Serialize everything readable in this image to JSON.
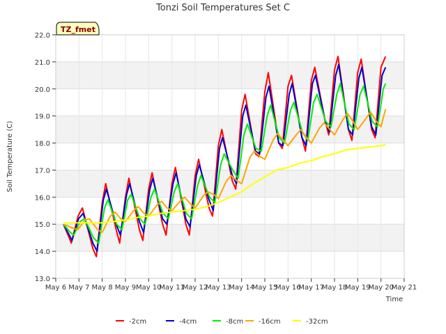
{
  "chart_data": {
    "type": "line",
    "title": "Tonzi Soil Temperatures Set C",
    "site_label": "TZ_fmet",
    "xlabel": "Time",
    "ylabel": "Soil Temperature (C)",
    "ylim": [
      13.0,
      22.0
    ],
    "yticks": [
      "13.0",
      "14.0",
      "15.0",
      "16.0",
      "17.0",
      "18.0",
      "19.0",
      "20.0",
      "21.0",
      "22.0"
    ],
    "xlim": [
      6,
      21
    ],
    "xticks": [
      "May 6",
      "May 7",
      "May 8",
      "May 9",
      "May 10",
      "May 11",
      "May 12",
      "May 13",
      "May 14",
      "May 15",
      "May 16",
      "May 17",
      "May 18",
      "May 19",
      "May 20",
      "May 21"
    ],
    "band_fill": "#f2f2f2",
    "series": [
      {
        "name": "-2cm",
        "color": "#ff0000",
        "x": [
          6.33,
          6.58,
          6.67,
          6.96,
          7.15,
          7.6,
          7.75,
          8.0,
          8.15,
          8.6,
          8.75,
          9.0,
          9.15,
          9.6,
          9.75,
          10.0,
          10.15,
          10.6,
          10.75,
          11.0,
          11.15,
          11.6,
          11.75,
          12.0,
          12.15,
          12.6,
          12.75,
          13.0,
          13.15,
          13.6,
          13.75,
          14.0,
          14.15,
          14.6,
          14.75,
          15.0,
          15.15,
          15.6,
          15.75,
          16.0,
          16.15,
          16.6,
          16.75,
          17.0,
          17.15,
          17.6,
          17.75,
          18.0,
          18.15,
          18.6,
          18.75,
          19.0,
          19.15,
          19.6,
          19.75,
          20.0,
          20.2
        ],
        "y": [
          15.0,
          14.5,
          14.3,
          15.3,
          15.6,
          14.1,
          13.8,
          15.8,
          16.5,
          14.8,
          14.3,
          16.0,
          16.7,
          14.8,
          14.4,
          16.3,
          16.9,
          15.0,
          14.6,
          16.5,
          17.1,
          15.0,
          14.6,
          16.8,
          17.4,
          15.6,
          15.3,
          17.9,
          18.5,
          16.6,
          16.3,
          19.2,
          19.8,
          17.6,
          17.5,
          19.9,
          20.6,
          18.0,
          17.8,
          20.1,
          20.5,
          18.2,
          17.7,
          20.3,
          20.8,
          18.8,
          18.3,
          20.7,
          21.2,
          18.5,
          18.1,
          20.6,
          21.1,
          18.5,
          18.2,
          20.8,
          21.2
        ]
      },
      {
        "name": "-4cm",
        "color": "#0000cc",
        "x": [
          6.33,
          6.58,
          6.7,
          6.98,
          7.18,
          7.6,
          7.78,
          8.05,
          8.18,
          8.6,
          8.78,
          9.05,
          9.18,
          9.6,
          9.78,
          10.05,
          10.18,
          10.6,
          10.78,
          11.05,
          11.18,
          11.6,
          11.78,
          12.05,
          12.18,
          12.6,
          12.78,
          13.05,
          13.18,
          13.6,
          13.78,
          14.05,
          14.18,
          14.6,
          14.78,
          15.05,
          15.18,
          15.6,
          15.78,
          16.05,
          16.18,
          16.6,
          16.78,
          17.05,
          17.18,
          17.6,
          17.78,
          18.05,
          18.18,
          18.6,
          18.78,
          19.05,
          19.18,
          19.6,
          19.78,
          20.05,
          20.2
        ],
        "y": [
          15.0,
          14.6,
          14.4,
          15.2,
          15.4,
          14.3,
          14.0,
          15.9,
          16.3,
          15.0,
          14.6,
          16.1,
          16.5,
          15.1,
          14.7,
          16.3,
          16.7,
          15.2,
          15.0,
          16.5,
          16.9,
          15.2,
          14.9,
          16.8,
          17.2,
          15.9,
          15.5,
          17.8,
          18.2,
          16.8,
          16.5,
          19.0,
          19.4,
          17.7,
          17.6,
          19.7,
          20.1,
          18.0,
          17.9,
          19.8,
          20.2,
          18.2,
          17.9,
          20.2,
          20.5,
          18.8,
          18.4,
          20.5,
          20.9,
          18.5,
          18.3,
          20.4,
          20.8,
          18.6,
          18.3,
          20.5,
          20.8
        ]
      },
      {
        "name": "-8cm",
        "color": "#00ee00",
        "x": [
          6.33,
          6.62,
          6.78,
          7.05,
          7.25,
          7.62,
          7.85,
          8.1,
          8.25,
          8.62,
          8.85,
          9.1,
          9.25,
          9.62,
          9.85,
          10.1,
          10.25,
          10.62,
          10.85,
          11.1,
          11.25,
          11.62,
          11.85,
          12.1,
          12.25,
          12.62,
          12.85,
          13.1,
          13.25,
          13.62,
          13.85,
          14.1,
          14.25,
          14.62,
          14.85,
          15.1,
          15.25,
          15.62,
          15.85,
          16.1,
          16.25,
          16.62,
          16.85,
          17.1,
          17.25,
          17.62,
          17.85,
          18.1,
          18.25,
          18.62,
          18.85,
          19.1,
          19.25,
          19.62,
          19.85,
          20.1,
          20.2
        ],
        "y": [
          15.0,
          14.7,
          14.6,
          15.1,
          15.2,
          14.5,
          14.3,
          15.6,
          15.9,
          15.0,
          14.8,
          15.9,
          16.1,
          15.2,
          15.0,
          16.0,
          16.3,
          15.4,
          15.2,
          16.2,
          16.5,
          15.4,
          15.2,
          16.4,
          16.8,
          16.0,
          15.8,
          17.2,
          17.6,
          17.0,
          16.7,
          18.3,
          18.7,
          17.8,
          17.7,
          19.0,
          19.4,
          18.2,
          18.0,
          19.2,
          19.5,
          18.4,
          18.1,
          19.5,
          19.8,
          18.8,
          18.6,
          19.8,
          20.2,
          18.7,
          18.5,
          19.8,
          20.1,
          18.8,
          18.6,
          20.0,
          20.2
        ]
      },
      {
        "name": "-16cm",
        "color": "#ffa500",
        "x": [
          6.33,
          6.75,
          6.95,
          7.25,
          7.45,
          7.8,
          8.0,
          8.35,
          8.55,
          8.8,
          9.0,
          9.35,
          9.55,
          9.8,
          10.0,
          10.35,
          10.55,
          10.8,
          11.0,
          11.35,
          11.55,
          11.8,
          12.0,
          12.35,
          12.55,
          12.8,
          13.0,
          13.35,
          13.55,
          13.8,
          14.0,
          14.35,
          14.55,
          14.8,
          15.0,
          15.35,
          15.55,
          15.8,
          16.0,
          16.35,
          16.55,
          16.8,
          17.0,
          17.35,
          17.55,
          17.8,
          18.0,
          18.35,
          18.55,
          18.8,
          19.0,
          19.35,
          19.55,
          19.8,
          20.0,
          20.2
        ],
        "y": [
          15.0,
          14.85,
          14.8,
          15.15,
          15.2,
          14.8,
          14.7,
          15.3,
          15.45,
          15.2,
          15.1,
          15.5,
          15.65,
          15.4,
          15.3,
          15.7,
          15.85,
          15.6,
          15.5,
          15.85,
          16.0,
          15.75,
          15.6,
          16.05,
          16.2,
          16.1,
          15.95,
          16.6,
          16.8,
          16.6,
          16.5,
          17.45,
          17.7,
          17.5,
          17.4,
          18.1,
          18.35,
          18.1,
          17.9,
          18.3,
          18.5,
          18.2,
          18.0,
          18.55,
          18.75,
          18.5,
          18.3,
          18.85,
          19.1,
          18.8,
          18.5,
          18.9,
          19.15,
          18.8,
          18.6,
          19.25
        ]
      },
      {
        "name": "-32cm",
        "color": "#ffff00",
        "x": [
          6.33,
          6.7,
          7.0,
          7.5,
          8.0,
          8.5,
          9.0,
          9.5,
          10.0,
          10.5,
          11.0,
          11.5,
          12.0,
          12.5,
          13.0,
          13.5,
          14.0,
          14.5,
          15.0,
          15.5,
          16.0,
          16.5,
          17.0,
          17.5,
          18.0,
          18.5,
          19.0,
          19.5,
          20.0,
          20.2
        ],
        "y": [
          15.05,
          15.05,
          15.05,
          15.05,
          15.05,
          15.1,
          15.15,
          15.25,
          15.3,
          15.4,
          15.45,
          15.5,
          15.55,
          15.65,
          15.8,
          16.0,
          16.2,
          16.5,
          16.75,
          17.0,
          17.1,
          17.25,
          17.35,
          17.5,
          17.6,
          17.75,
          17.8,
          17.85,
          17.9,
          17.95
        ]
      }
    ]
  }
}
